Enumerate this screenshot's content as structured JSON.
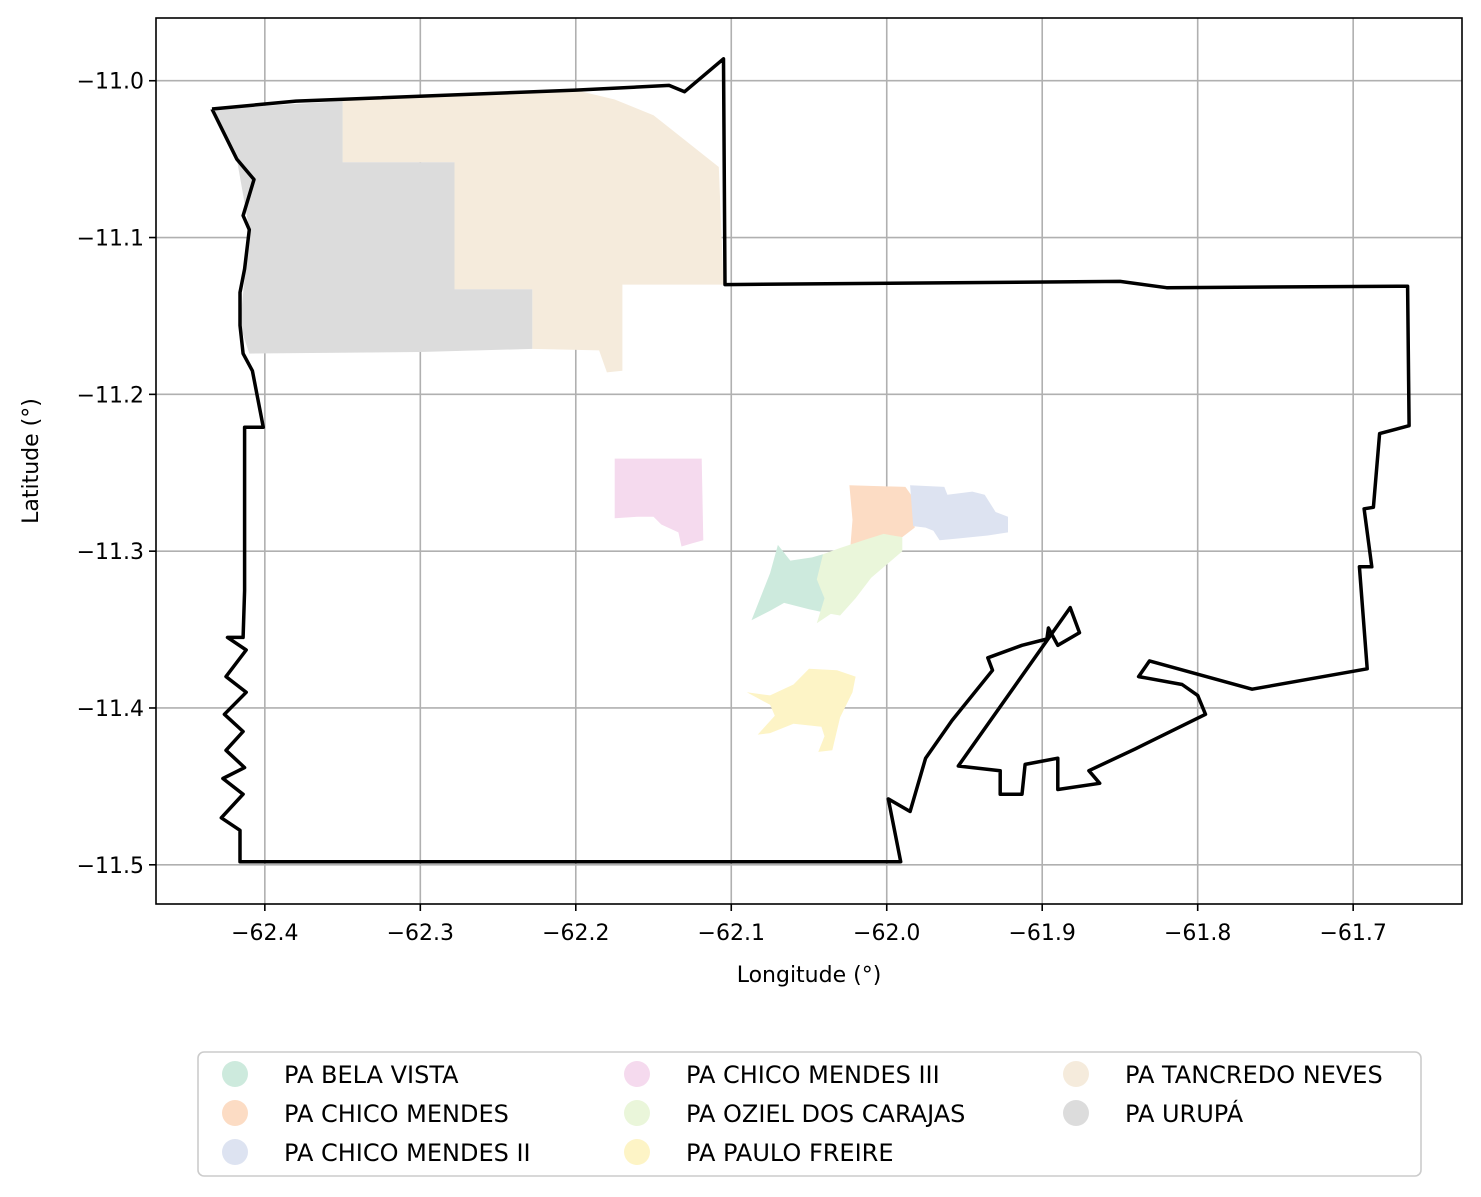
{
  "chart_data": {
    "type": "map",
    "xlabel": "Longitude (°)",
    "ylabel": "Latitude (°)",
    "xlim": [
      -62.47,
      -61.63
    ],
    "ylim": [
      -11.525,
      -10.96
    ],
    "xticks": [
      -62.4,
      -62.3,
      -62.2,
      -62.1,
      -62.0,
      -61.9,
      -61.8,
      -61.7
    ],
    "xtick_labels": [
      "−62.4",
      "−62.3",
      "−62.2",
      "−62.1",
      "−62.0",
      "−61.9",
      "−61.8",
      "−61.7"
    ],
    "yticks": [
      -11.0,
      -11.1,
      -11.2,
      -11.3,
      -11.4,
      -11.5
    ],
    "ytick_labels": [
      "−11.0",
      "−11.1",
      "−11.2",
      "−11.3",
      "−11.4",
      "−11.5"
    ],
    "grid": true,
    "legend_position": "bottom-center",
    "boundary": {
      "color": "#000000",
      "points": [
        [
          -62.434,
          -11.018
        ],
        [
          -62.38,
          -11.013
        ],
        [
          -62.2,
          -11.006
        ],
        [
          -62.14,
          -11.003
        ],
        [
          -62.13,
          -11.007
        ],
        [
          -62.105,
          -10.986
        ],
        [
          -62.104,
          -11.13
        ],
        [
          -61.85,
          -11.128
        ],
        [
          -61.82,
          -11.132
        ],
        [
          -61.665,
          -11.131
        ],
        [
          -61.664,
          -11.22
        ],
        [
          -61.683,
          -11.225
        ],
        [
          -61.687,
          -11.272
        ],
        [
          -61.693,
          -11.273
        ],
        [
          -61.688,
          -11.31
        ],
        [
          -61.696,
          -11.31
        ],
        [
          -61.691,
          -11.375
        ],
        [
          -61.765,
          -11.388
        ],
        [
          -61.831,
          -11.37
        ],
        [
          -61.838,
          -11.38
        ],
        [
          -61.81,
          -11.385
        ],
        [
          -61.8,
          -11.392
        ],
        [
          -61.795,
          -11.404
        ],
        [
          -61.84,
          -11.426
        ],
        [
          -61.87,
          -11.44
        ],
        [
          -61.863,
          -11.448
        ],
        [
          -61.89,
          -11.452
        ],
        [
          -61.89,
          -11.432
        ],
        [
          -61.911,
          -11.436
        ],
        [
          -61.913,
          -11.455
        ],
        [
          -61.927,
          -11.455
        ],
        [
          -61.927,
          -11.44
        ],
        [
          -61.954,
          -11.437
        ],
        [
          -61.882,
          -11.336
        ],
        [
          -61.876,
          -11.352
        ],
        [
          -61.89,
          -11.36
        ],
        [
          -61.896,
          -11.349
        ],
        [
          -61.897,
          -11.356
        ],
        [
          -61.913,
          -11.36
        ],
        [
          -61.935,
          -11.368
        ],
        [
          -61.932,
          -11.376
        ],
        [
          -61.958,
          -11.408
        ],
        [
          -61.975,
          -11.432
        ],
        [
          -61.985,
          -11.466
        ],
        [
          -61.999,
          -11.458
        ],
        [
          -61.991,
          -11.498
        ],
        [
          -62.416,
          -11.498
        ],
        [
          -62.416,
          -11.478
        ],
        [
          -62.428,
          -11.47
        ],
        [
          -62.414,
          -11.455
        ],
        [
          -62.427,
          -11.445
        ],
        [
          -62.413,
          -11.438
        ],
        [
          -62.425,
          -11.427
        ],
        [
          -62.414,
          -11.415
        ],
        [
          -62.426,
          -11.404
        ],
        [
          -62.412,
          -11.39
        ],
        [
          -62.425,
          -11.38
        ],
        [
          -62.412,
          -11.363
        ],
        [
          -62.424,
          -11.355
        ],
        [
          -62.414,
          -11.355
        ],
        [
          -62.413,
          -11.325
        ],
        [
          -62.413,
          -11.221
        ],
        [
          -62.401,
          -11.221
        ],
        [
          -62.408,
          -11.185
        ],
        [
          -62.414,
          -11.174
        ],
        [
          -62.416,
          -11.156
        ],
        [
          -62.416,
          -11.135
        ],
        [
          -62.413,
          -11.12
        ],
        [
          -62.41,
          -11.095
        ],
        [
          -62.414,
          -11.086
        ],
        [
          -62.407,
          -11.063
        ],
        [
          -62.418,
          -11.05
        ],
        [
          -62.434,
          -11.018
        ]
      ]
    },
    "series": [
      {
        "name": "PA BELA VISTA",
        "color": "#cdeadd",
        "polygon": [
          [
            -62.087,
            -11.344
          ],
          [
            -62.075,
            -11.314
          ],
          [
            -62.07,
            -11.296
          ],
          [
            -62.062,
            -11.306
          ],
          [
            -62.048,
            -11.304
          ],
          [
            -62.041,
            -11.302
          ],
          [
            -62.038,
            -11.321
          ],
          [
            -62.036,
            -11.34
          ],
          [
            -62.05,
            -11.337
          ],
          [
            -62.066,
            -11.333
          ],
          [
            -62.075,
            -11.338
          ]
        ]
      },
      {
        "name": "PA CHICO MENDES",
        "color": "#fcdcc4",
        "polygon": [
          [
            -62.024,
            -11.258
          ],
          [
            -61.988,
            -11.259
          ],
          [
            -61.983,
            -11.266
          ],
          [
            -61.982,
            -11.285
          ],
          [
            -61.99,
            -11.291
          ],
          [
            -62.0,
            -11.29
          ],
          [
            -62.012,
            -11.294
          ],
          [
            -62.022,
            -11.299
          ],
          [
            -62.024,
            -11.305
          ],
          [
            -62.022,
            -11.28
          ]
        ]
      },
      {
        "name": "PA CHICO MENDES II",
        "color": "#dde3f1",
        "polygon": [
          [
            -61.985,
            -11.258
          ],
          [
            -61.963,
            -11.259
          ],
          [
            -61.961,
            -11.264
          ],
          [
            -61.945,
            -11.262
          ],
          [
            -61.937,
            -11.264
          ],
          [
            -61.93,
            -11.275
          ],
          [
            -61.922,
            -11.278
          ],
          [
            -61.922,
            -11.288
          ],
          [
            -61.935,
            -11.29
          ],
          [
            -61.955,
            -11.292
          ],
          [
            -61.966,
            -11.293
          ],
          [
            -61.97,
            -11.287
          ],
          [
            -61.975,
            -11.285
          ],
          [
            -61.983,
            -11.284
          ]
        ]
      },
      {
        "name": "PA CHICO MENDES III",
        "color": "#f5daee",
        "polygon": [
          [
            -62.175,
            -11.241
          ],
          [
            -62.119,
            -11.241
          ],
          [
            -62.118,
            -11.293
          ],
          [
            -62.125,
            -11.295
          ],
          [
            -62.132,
            -11.297
          ],
          [
            -62.134,
            -11.288
          ],
          [
            -62.145,
            -11.283
          ],
          [
            -62.15,
            -11.278
          ],
          [
            -62.16,
            -11.278
          ],
          [
            -62.175,
            -11.279
          ]
        ]
      },
      {
        "name": "PA OZIEL DOS CARAJAS",
        "color": "#eaf6da",
        "polygon": [
          [
            -62.041,
            -11.302
          ],
          [
            -62.03,
            -11.298
          ],
          [
            -62.015,
            -11.293
          ],
          [
            -62.002,
            -11.289
          ],
          [
            -61.99,
            -11.291
          ],
          [
            -61.99,
            -11.3
          ],
          [
            -62.01,
            -11.317
          ],
          [
            -62.02,
            -11.33
          ],
          [
            -62.03,
            -11.341
          ],
          [
            -62.036,
            -11.34
          ],
          [
            -62.045,
            -11.346
          ],
          [
            -62.04,
            -11.33
          ],
          [
            -62.045,
            -11.318
          ]
        ]
      },
      {
        "name": "PA PAULO FREIRE",
        "color": "#fdf4c6",
        "polygon": [
          [
            -62.09,
            -11.39
          ],
          [
            -62.075,
            -11.398
          ],
          [
            -62.072,
            -11.405
          ],
          [
            -62.083,
            -11.417
          ],
          [
            -62.075,
            -11.416
          ],
          [
            -62.06,
            -11.41
          ],
          [
            -62.042,
            -11.412
          ],
          [
            -62.04,
            -11.418
          ],
          [
            -62.044,
            -11.428
          ],
          [
            -62.035,
            -11.427
          ],
          [
            -62.03,
            -11.406
          ],
          [
            -62.022,
            -11.39
          ],
          [
            -62.02,
            -11.38
          ],
          [
            -62.032,
            -11.376
          ],
          [
            -62.05,
            -11.375
          ],
          [
            -62.06,
            -11.385
          ],
          [
            -62.075,
            -11.392
          ]
        ]
      },
      {
        "name": "PA TANCREDO NEVES",
        "color": "#f5ebdc",
        "polygon": [
          [
            -62.35,
            -11.012
          ],
          [
            -62.2,
            -11.006
          ],
          [
            -62.175,
            -11.012
          ],
          [
            -62.15,
            -11.022
          ],
          [
            -62.108,
            -11.055
          ],
          [
            -62.105,
            -11.13
          ],
          [
            -62.17,
            -11.13
          ],
          [
            -62.17,
            -11.185
          ],
          [
            -62.18,
            -11.186
          ],
          [
            -62.185,
            -11.172
          ],
          [
            -62.228,
            -11.171
          ],
          [
            -62.228,
            -11.133
          ],
          [
            -62.278,
            -11.133
          ],
          [
            -62.278,
            -11.052
          ],
          [
            -62.35,
            -11.052
          ]
        ]
      },
      {
        "name": "PA URUPÁ",
        "color": "#dcdcdc",
        "polygon": [
          [
            -62.434,
            -11.018
          ],
          [
            -62.35,
            -11.013
          ],
          [
            -62.35,
            -11.052
          ],
          [
            -62.278,
            -11.052
          ],
          [
            -62.278,
            -11.133
          ],
          [
            -62.228,
            -11.133
          ],
          [
            -62.228,
            -11.171
          ],
          [
            -62.3,
            -11.173
          ],
          [
            -62.41,
            -11.174
          ],
          [
            -62.416,
            -11.156
          ],
          [
            -62.41,
            -11.095
          ],
          [
            -62.418,
            -11.05
          ]
        ]
      }
    ]
  }
}
